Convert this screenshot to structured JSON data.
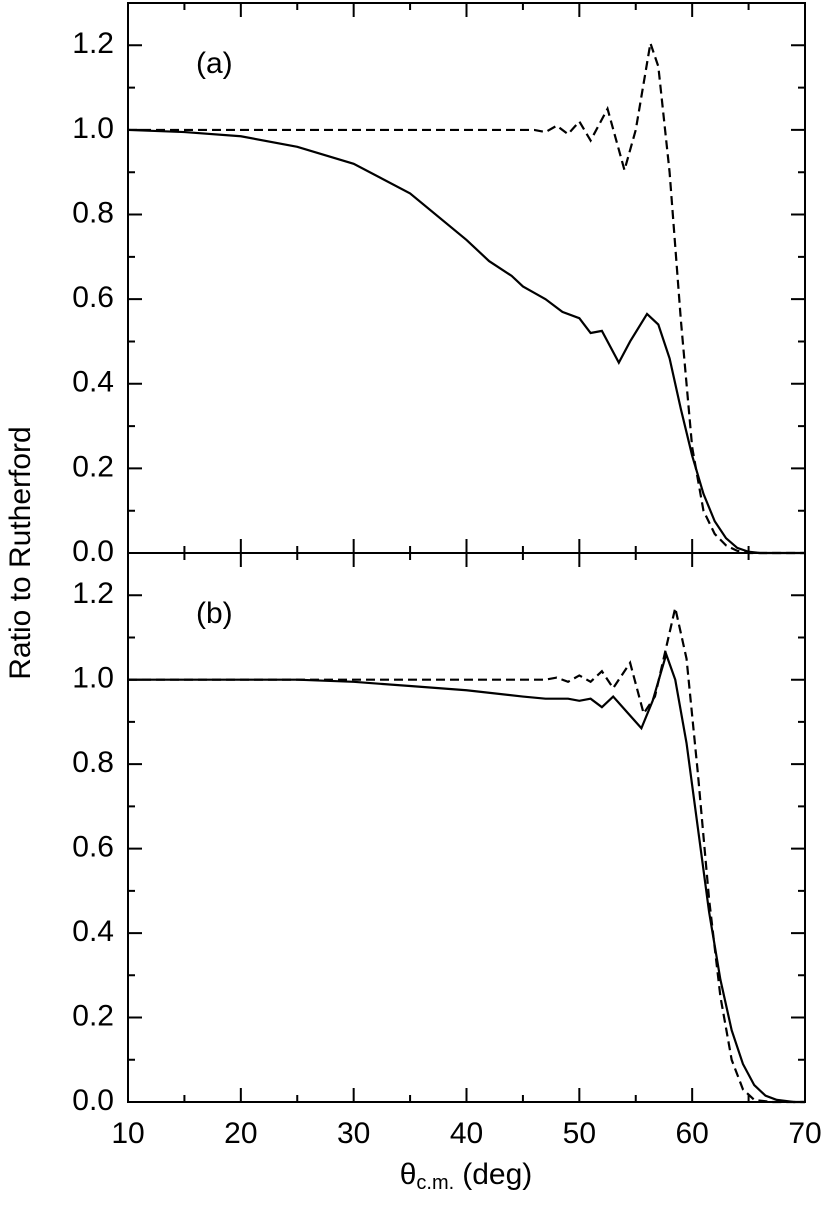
{
  "chart_data": [
    {
      "type": "line",
      "annotation": "(a)",
      "ylabel": "Ratio to Rutherford",
      "xlim": [
        10,
        70
      ],
      "ylim": [
        0,
        1.3
      ],
      "xticks": [
        10,
        20,
        30,
        40,
        50,
        60,
        70
      ],
      "xminor": [
        15,
        25,
        35,
        45,
        55,
        65
      ],
      "show_xtick_labels": false,
      "yticks": [
        {
          "value": 0,
          "label": "0.0"
        },
        0.2,
        0.4,
        0.6,
        0.8,
        {
          "value": 1,
          "label": "1.0"
        },
        1.2
      ],
      "yminor": [
        0.1,
        0.3,
        0.5,
        0.7,
        0.9,
        1.1
      ],
      "series": [
        {
          "style": "solid",
          "color": "#000000",
          "x": [
            10,
            15,
            20,
            25,
            30,
            35,
            40,
            42,
            44,
            45,
            46,
            47,
            48.5,
            50,
            51,
            52,
            53.5,
            54.5,
            56,
            57,
            58,
            59,
            60,
            61,
            62,
            63,
            64,
            65,
            66,
            70
          ],
          "values": [
            1.0,
            0.995,
            0.985,
            0.96,
            0.92,
            0.85,
            0.74,
            0.69,
            0.655,
            0.63,
            0.615,
            0.6,
            0.57,
            0.555,
            0.52,
            0.525,
            0.45,
            0.5,
            0.565,
            0.54,
            0.46,
            0.34,
            0.23,
            0.14,
            0.075,
            0.035,
            0.012,
            0.003,
            0,
            0
          ]
        },
        {
          "style": "dashed",
          "color": "#000000",
          "x": [
            10,
            20,
            30,
            40,
            44,
            46,
            47,
            48,
            49,
            50,
            51,
            52.5,
            54,
            55,
            56.3,
            57,
            58,
            59,
            60,
            61,
            62,
            63,
            64,
            65,
            70
          ],
          "values": [
            1.0,
            1.0,
            1.0,
            1.0,
            1.0,
            1.0,
            0.995,
            1.01,
            0.99,
            1.02,
            0.975,
            1.05,
            0.905,
            1.0,
            1.205,
            1.15,
            0.9,
            0.55,
            0.25,
            0.1,
            0.045,
            0.018,
            0.005,
            0,
            0
          ]
        }
      ]
    },
    {
      "type": "line",
      "annotation": "(b)",
      "xlabel": {
        "symbol": "θ",
        "subscript": "c.m.",
        "unit": "(deg)"
      },
      "xlim": [
        10,
        70
      ],
      "ylim": [
        0,
        1.3
      ],
      "xticks": [
        10,
        20,
        30,
        40,
        50,
        60,
        70
      ],
      "xminor": [
        15,
        25,
        35,
        45,
        55,
        65
      ],
      "show_xtick_labels": true,
      "yticks": [
        {
          "value": 0,
          "label": "0.0"
        },
        0.2,
        0.4,
        0.6,
        0.8,
        {
          "value": 1,
          "label": "1.0"
        },
        1.2
      ],
      "yminor": [
        0.1,
        0.3,
        0.5,
        0.7,
        0.9,
        1.1
      ],
      "series": [
        {
          "style": "solid",
          "color": "#000000",
          "x": [
            10,
            25,
            30,
            35,
            40,
            45,
            47,
            49,
            50,
            51,
            52,
            53,
            54,
            55.5,
            56.5,
            57.7,
            58.5,
            59.5,
            60.5,
            61.5,
            62.5,
            63.5,
            64.5,
            65.5,
            66.5,
            67.5,
            69,
            70
          ],
          "values": [
            1.0,
            1.0,
            0.995,
            0.985,
            0.975,
            0.96,
            0.955,
            0.955,
            0.95,
            0.955,
            0.935,
            0.96,
            0.93,
            0.885,
            0.95,
            1.06,
            1.0,
            0.85,
            0.65,
            0.45,
            0.29,
            0.17,
            0.09,
            0.04,
            0.015,
            0.005,
            0,
            0
          ]
        },
        {
          "style": "dashed",
          "color": "#000000",
          "x": [
            10,
            30,
            45,
            47,
            48,
            49,
            50,
            51,
            52,
            53,
            54.5,
            55.7,
            56.7,
            58.5,
            59.5,
            60.5,
            61.5,
            62.5,
            63.5,
            64.5,
            65.5,
            67,
            70
          ],
          "values": [
            1.0,
            1.0,
            1.0,
            1.0,
            1.005,
            0.995,
            1.01,
            0.995,
            1.02,
            0.98,
            1.04,
            0.92,
            0.96,
            1.17,
            1.05,
            0.78,
            0.48,
            0.25,
            0.1,
            0.03,
            0.005,
            0,
            0
          ]
        }
      ]
    }
  ]
}
